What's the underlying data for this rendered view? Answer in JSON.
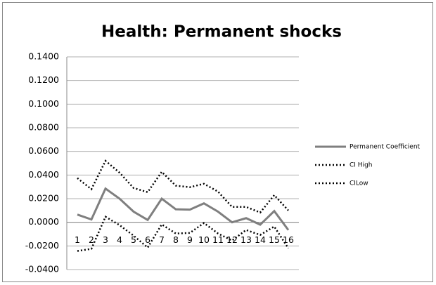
{
  "chart_data": {
    "type": "line",
    "title": "Health: Permanent shocks",
    "categories": [
      "1",
      "2",
      "3",
      "4",
      "5",
      "6",
      "7",
      "8",
      "9",
      "10",
      "11",
      "12",
      "13",
      "14",
      "15",
      "16"
    ],
    "series": [
      {
        "name": "Permanent Coefficient",
        "color": "#7f7f7f",
        "style": "solid",
        "values": [
          0.0065,
          0.0024,
          0.0285,
          0.02,
          0.009,
          0.002,
          0.02,
          0.011,
          0.0107,
          0.016,
          0.009,
          0.0,
          0.0035,
          -0.002,
          0.0095,
          -0.0065
        ]
      },
      {
        "name": "CI High",
        "color": "#000000",
        "style": "dotted",
        "values": [
          0.0374,
          0.028,
          0.052,
          0.042,
          0.029,
          0.0255,
          0.0427,
          0.031,
          0.0297,
          0.0326,
          0.026,
          0.013,
          0.013,
          0.0083,
          0.023,
          0.01
        ]
      },
      {
        "name": "CILow",
        "color": "#000000",
        "style": "dotted",
        "values": [
          -0.0243,
          -0.0225,
          0.0047,
          -0.0024,
          -0.0113,
          -0.0214,
          -0.0018,
          -0.0095,
          -0.009,
          -0.0006,
          -0.0095,
          -0.0154,
          -0.0065,
          -0.0107,
          -0.0036,
          -0.022
        ]
      }
    ],
    "ylim": [
      -0.04,
      0.14
    ],
    "yticks": [
      {
        "value": -0.04,
        "label": "-0.0400"
      },
      {
        "value": -0.02,
        "label": "-0.0200"
      },
      {
        "value": 0,
        "label": "0.0000"
      },
      {
        "value": 0.02,
        "label": "0.0200"
      },
      {
        "value": 0.04,
        "label": "0.0400"
      },
      {
        "value": 0.06,
        "label": "0.0600"
      },
      {
        "value": 0.08,
        "label": "0.0800"
      },
      {
        "value": 0.1,
        "label": "0.1000"
      },
      {
        "value": 0.12,
        "label": "0.1200"
      },
      {
        "value": 0.14,
        "label": "0.1400"
      }
    ],
    "grid": true,
    "legend": "right"
  }
}
